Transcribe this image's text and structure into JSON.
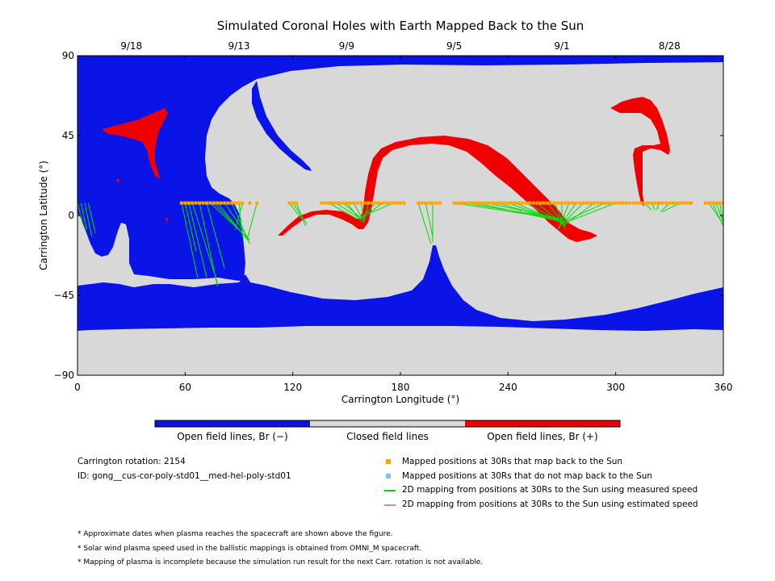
{
  "chart_data": {
    "type": "map",
    "title": "Simulated Coronal Holes with Earth Mapped Back to the Sun",
    "xlabel": "Carrington Longitude (°)",
    "ylabel": "Carrington Latitude (°)",
    "xlim": [
      0,
      360
    ],
    "ylim": [
      -90,
      90
    ],
    "x_ticks": [
      0,
      60,
      120,
      180,
      240,
      300,
      360
    ],
    "y_ticks": [
      -90,
      -45,
      0,
      45,
      90
    ],
    "y_tick_labels": [
      "−90",
      "−45",
      "0",
      "45",
      "90"
    ],
    "date_ticks": [
      {
        "label": "9/18",
        "lon": 30
      },
      {
        "label": "9/13",
        "lon": 90
      },
      {
        "label": "9/9",
        "lon": 150
      },
      {
        "label": "9/5",
        "lon": 210
      },
      {
        "label": "9/1",
        "lon": 270
      },
      {
        "label": "8/28",
        "lon": 330
      }
    ],
    "mapping_latitude": 7,
    "mapped_positions_lon": [
      58,
      60,
      62,
      64,
      66,
      68,
      70,
      72,
      74,
      76,
      78,
      80,
      82,
      84,
      86,
      88,
      90,
      92,
      96,
      100,
      118,
      120,
      122,
      136,
      138,
      140,
      142,
      144,
      146,
      148,
      150,
      152,
      154,
      156,
      158,
      160,
      162,
      164,
      166,
      168,
      170,
      172,
      174,
      176,
      178,
      180,
      182,
      190,
      192,
      194,
      196,
      198,
      200,
      202,
      210,
      212,
      214,
      216,
      218,
      220,
      222,
      224,
      226,
      228,
      230,
      232,
      234,
      236,
      238,
      240,
      242,
      244,
      246,
      248,
      250,
      252,
      254,
      256,
      258,
      260,
      262,
      264,
      266,
      268,
      270,
      272,
      274,
      276,
      278,
      280,
      282,
      284,
      286,
      288,
      290,
      292,
      294,
      296,
      298,
      300,
      302,
      304,
      306,
      308,
      310,
      312,
      314,
      316,
      318,
      320,
      322,
      324,
      326,
      328,
      330,
      332,
      334,
      336,
      338,
      340,
      342,
      350,
      352,
      354,
      356,
      358,
      360
    ],
    "green_lines": [
      [
        [
          0,
          7
        ],
        [
          3,
          -5
        ]
      ],
      [
        [
          2,
          7
        ],
        [
          5,
          -8
        ]
      ],
      [
        [
          4,
          7
        ],
        [
          8,
          -12
        ]
      ],
      [
        [
          6,
          7
        ],
        [
          10,
          -10
        ]
      ],
      [
        [
          58,
          7
        ],
        [
          67,
          -35
        ]
      ],
      [
        [
          60,
          7
        ],
        [
          66,
          -20
        ]
      ],
      [
        [
          62,
          7
        ],
        [
          72,
          -35
        ]
      ],
      [
        [
          64,
          7
        ],
        [
          78,
          -38
        ]
      ],
      [
        [
          68,
          7
        ],
        [
          78,
          -40
        ]
      ],
      [
        [
          72,
          7
        ],
        [
          82,
          -30
        ]
      ],
      [
        [
          74,
          7
        ],
        [
          92,
          -10
        ]
      ],
      [
        [
          76,
          7
        ],
        [
          94,
          -12
        ]
      ],
      [
        [
          78,
          7
        ],
        [
          95,
          -14
        ]
      ],
      [
        [
          82,
          7
        ],
        [
          96,
          -14
        ]
      ],
      [
        [
          86,
          7
        ],
        [
          96,
          -16
        ]
      ],
      [
        [
          90,
          7
        ],
        [
          92,
          -12
        ]
      ],
      [
        [
          92,
          7
        ],
        [
          88,
          -8
        ]
      ],
      [
        [
          100,
          7
        ],
        [
          95,
          -12
        ]
      ],
      [
        [
          118,
          7
        ],
        [
          125,
          -2
        ]
      ],
      [
        [
          120,
          7
        ],
        [
          128,
          -5
        ]
      ],
      [
        [
          122,
          7
        ],
        [
          127,
          -6
        ]
      ],
      [
        [
          140,
          7
        ],
        [
          156,
          -2
        ]
      ],
      [
        [
          144,
          7
        ],
        [
          158,
          -2
        ]
      ],
      [
        [
          148,
          7
        ],
        [
          160,
          -3
        ]
      ],
      [
        [
          150,
          7
        ],
        [
          159,
          -4
        ]
      ],
      [
        [
          154,
          7
        ],
        [
          160,
          -4
        ]
      ],
      [
        [
          158,
          7
        ],
        [
          160,
          -3
        ]
      ],
      [
        [
          162,
          7
        ],
        [
          160,
          -2
        ]
      ],
      [
        [
          166,
          7
        ],
        [
          158,
          -2
        ]
      ],
      [
        [
          170,
          7
        ],
        [
          158,
          -2
        ]
      ],
      [
        [
          176,
          7
        ],
        [
          158,
          -1
        ]
      ],
      [
        [
          190,
          7
        ],
        [
          197,
          -16
        ]
      ],
      [
        [
          194,
          7
        ],
        [
          198,
          -12
        ]
      ],
      [
        [
          198,
          7
        ],
        [
          198,
          -15
        ]
      ],
      [
        [
          210,
          7
        ],
        [
          268,
          -2
        ]
      ],
      [
        [
          216,
          7
        ],
        [
          270,
          -2
        ]
      ],
      [
        [
          222,
          7
        ],
        [
          268,
          -3
        ]
      ],
      [
        [
          228,
          7
        ],
        [
          270,
          -2
        ]
      ],
      [
        [
          234,
          7
        ],
        [
          272,
          -4
        ]
      ],
      [
        [
          240,
          7
        ],
        [
          270,
          -4
        ]
      ],
      [
        [
          244,
          7
        ],
        [
          272,
          -5
        ]
      ],
      [
        [
          250,
          7
        ],
        [
          272,
          -5
        ]
      ],
      [
        [
          256,
          7
        ],
        [
          270,
          -4
        ]
      ],
      [
        [
          262,
          7
        ],
        [
          272,
          -6
        ]
      ],
      [
        [
          266,
          7
        ],
        [
          272,
          -8
        ]
      ],
      [
        [
          270,
          7
        ],
        [
          270,
          -6
        ]
      ],
      [
        [
          274,
          7
        ],
        [
          268,
          -8
        ]
      ],
      [
        [
          278,
          7
        ],
        [
          268,
          -7
        ]
      ],
      [
        [
          282,
          7
        ],
        [
          270,
          -5
        ]
      ],
      [
        [
          288,
          7
        ],
        [
          272,
          -5
        ]
      ],
      [
        [
          294,
          7
        ],
        [
          270,
          -4
        ]
      ],
      [
        [
          300,
          7
        ],
        [
          272,
          -4
        ]
      ],
      [
        [
          316,
          7
        ],
        [
          320,
          3
        ]
      ],
      [
        [
          320,
          7
        ],
        [
          322,
          3
        ]
      ],
      [
        [
          324,
          7
        ],
        [
          323,
          3
        ]
      ],
      [
        [
          330,
          7
        ],
        [
          325,
          2
        ]
      ],
      [
        [
          336,
          7
        ],
        [
          326,
          2
        ]
      ],
      [
        [
          352,
          7
        ],
        [
          358,
          -2
        ]
      ],
      [
        [
          354,
          7
        ],
        [
          360,
          -6
        ]
      ],
      [
        [
          356,
          7
        ],
        [
          360,
          -4
        ]
      ],
      [
        [
          358,
          7
        ],
        [
          360,
          -5
        ]
      ]
    ]
  },
  "colorbar": {
    "colors": {
      "negative": "#0a14e6",
      "closed": "#d8d8d8",
      "positive": "#f00000"
    },
    "labels": [
      "Open field lines, Br (−)",
      "Closed field lines",
      "Open field lines, Br (+)"
    ]
  },
  "info": {
    "carrington_rotation": "Carrington rotation: 2154",
    "id": "ID: gong__cus-cor-poly-std01__med-hel-poly-std01"
  },
  "legend": [
    {
      "symbol": "square",
      "color": "#ffa500",
      "label": "Mapped positions at 30Rs that map back to the Sun"
    },
    {
      "symbol": "square",
      "color": "#80c0ff",
      "label": "Mapped positions at 30Rs that do not map back to the Sun"
    },
    {
      "symbol": "line",
      "color": "#00dd00",
      "label": "2D mapping from positions at 30Rs to the Sun using measured speed"
    },
    {
      "symbol": "line",
      "color": "#c080ff",
      "label": "2D mapping from positions at 30Rs to the Sun using estimated speed"
    }
  ],
  "notes": [
    "* Approximate dates when plasma reaches the spacecraft are shown above the figure.",
    "* Solar wind plasma speed used in the ballistic mappings is obtained from OMNI_M spacecraft.",
    "* Mapping of plasma is incomplete because the simulation run result for the next Carr. rotation is not available."
  ]
}
